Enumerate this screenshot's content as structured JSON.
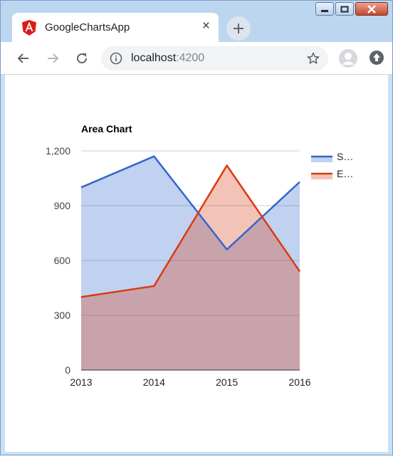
{
  "browser": {
    "tab_title": "GoogleChartsApp",
    "tab_close_glyph": "×",
    "new_tab_glyph": "+",
    "url_host": "localhost",
    "url_port": ":4200",
    "icons": [
      "angular-icon",
      "back-icon",
      "forward-icon",
      "reload-icon",
      "info-icon",
      "star-icon",
      "profile-icon",
      "update-icon",
      "minimize-icon",
      "maximize-icon",
      "close-icon"
    ]
  },
  "colors": {
    "series1": "#3366cc",
    "series2": "#dc3912"
  },
  "chart_data": {
    "type": "area",
    "title": "Area Chart",
    "x": [
      "2013",
      "2014",
      "2015",
      "2016"
    ],
    "ylim": [
      0,
      1200
    ],
    "yticks": [
      0,
      300,
      600,
      900,
      1200
    ],
    "ytick_labels": [
      "0",
      "300",
      "600",
      "900",
      "1,200"
    ],
    "grid": true,
    "legend_position": "right",
    "series": [
      {
        "name": "S…",
        "values": [
          1000,
          1170,
          660,
          1030
        ]
      },
      {
        "name": "E…",
        "values": [
          400,
          460,
          1120,
          540
        ]
      }
    ]
  }
}
